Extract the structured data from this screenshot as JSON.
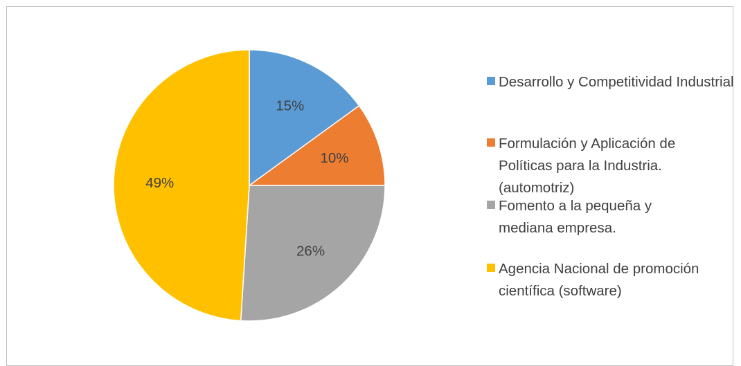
{
  "chart_data": {
    "type": "pie",
    "title": "",
    "slices": [
      {
        "label": "Desarrollo y Competitividad Industrial",
        "value": 15,
        "value_label": "15%",
        "color": "#5B9BD5"
      },
      {
        "label": "Formulación y Aplicación de Políticas para la Industria. (automotriz)",
        "value": 10,
        "value_label": "10%",
        "color": "#ED7D31"
      },
      {
        "label": "Fomento a la pequeña y mediana empresa.",
        "value": 26,
        "value_label": "26%",
        "color": "#A5A5A5"
      },
      {
        "label": "Agencia Nacional de promoción científica (software)",
        "value": 49,
        "value_label": "49%",
        "color": "#FFC000"
      }
    ],
    "legend_placement": "right"
  }
}
